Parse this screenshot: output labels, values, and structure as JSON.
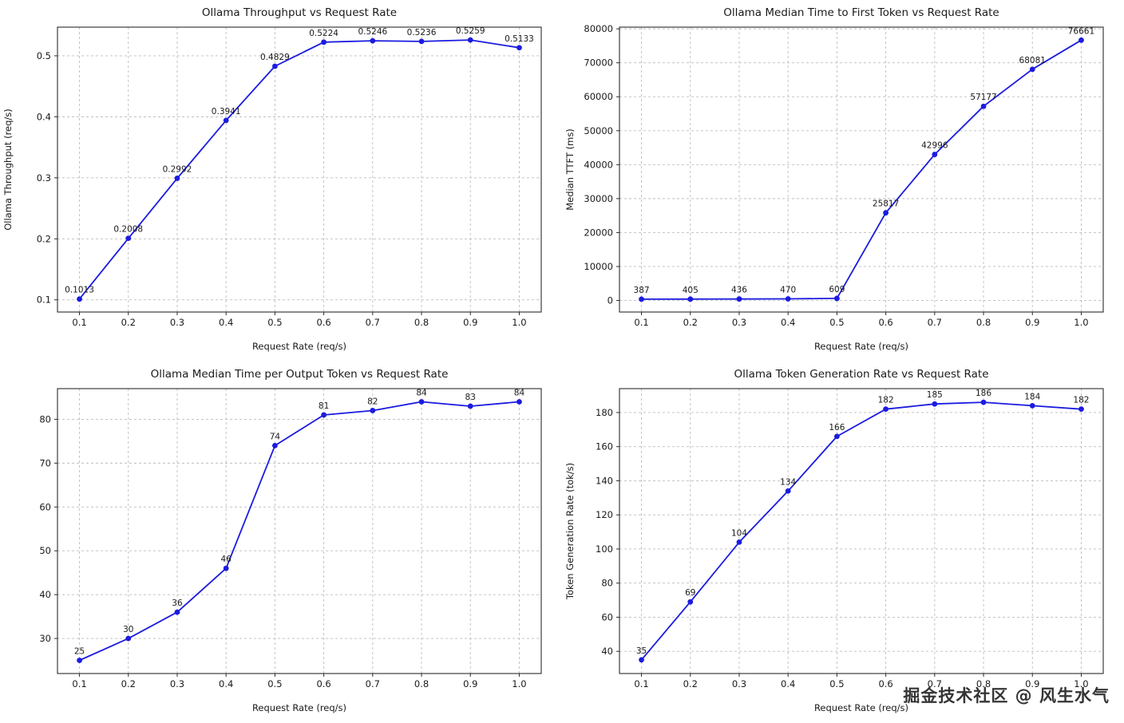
{
  "watermark": "掘金技术社区 @ 风生水气",
  "style": {
    "line_color": "#1b1be0",
    "marker_color": "#1b1be0",
    "grid_color": "#bdbdbd",
    "axis_color": "#2b2b2b",
    "text_color": "#1a1a1a",
    "background": "#ffffff"
  },
  "chart_data": [
    {
      "type": "line",
      "title": "Ollama Throughput vs Request Rate",
      "xlabel": "Request Rate (req/s)",
      "ylabel": "Ollama Throughput (req/s)",
      "x": [
        0.1,
        0.2,
        0.3,
        0.4,
        0.5,
        0.6,
        0.7,
        0.8,
        0.9,
        1.0
      ],
      "values": [
        0.1013,
        0.2008,
        0.2992,
        0.3941,
        0.4829,
        0.5224,
        0.5246,
        0.5236,
        0.5259,
        0.5133
      ],
      "point_labels": [
        "0.1013",
        "0.2008",
        "0.2992",
        "0.3941",
        "0.4829",
        "0.5224",
        "0.5246",
        "0.5236",
        "0.5259",
        "0.5133"
      ],
      "xticks": [
        0.1,
        0.2,
        0.3,
        0.4,
        0.5,
        0.6,
        0.7,
        0.8,
        0.9,
        1.0
      ],
      "xtick_labels": [
        "0.1",
        "0.2",
        "0.3",
        "0.4",
        "0.5",
        "0.6",
        "0.7",
        "0.8",
        "0.9",
        "1.0"
      ],
      "yticks": [
        0.1,
        0.2,
        0.3,
        0.4,
        0.5
      ],
      "ytick_labels": [
        "0.1",
        "0.2",
        "0.3",
        "0.4",
        "0.5"
      ],
      "xlim": [
        0.055,
        1.045
      ],
      "ylim": [
        0.08,
        0.547
      ],
      "grid": true,
      "legend": "none"
    },
    {
      "type": "line",
      "title": "Ollama Median Time to First Token vs Request Rate",
      "xlabel": "Request Rate (req/s)",
      "ylabel": "Median TTFT (ms)",
      "x": [
        0.1,
        0.2,
        0.3,
        0.4,
        0.5,
        0.6,
        0.7,
        0.8,
        0.9,
        1.0
      ],
      "values": [
        387,
        405,
        436,
        470,
        609,
        25817,
        42996,
        57177,
        68081,
        76661
      ],
      "point_labels": [
        "387",
        "405",
        "436",
        "470",
        "609",
        "25817",
        "42996",
        "57177",
        "68081",
        "76661"
      ],
      "xticks": [
        0.1,
        0.2,
        0.3,
        0.4,
        0.5,
        0.6,
        0.7,
        0.8,
        0.9,
        1.0
      ],
      "xtick_labels": [
        "0.1",
        "0.2",
        "0.3",
        "0.4",
        "0.5",
        "0.6",
        "0.7",
        "0.8",
        "0.9",
        "1.0"
      ],
      "yticks": [
        0,
        10000,
        20000,
        30000,
        40000,
        50000,
        60000,
        70000,
        80000
      ],
      "ytick_labels": [
        "0",
        "10000",
        "20000",
        "30000",
        "40000",
        "50000",
        "60000",
        "70000",
        "80000"
      ],
      "xlim": [
        0.055,
        1.045
      ],
      "ylim": [
        -3400,
        80500
      ],
      "grid": true,
      "legend": "none"
    },
    {
      "type": "line",
      "title": "Ollama Median Time per Output Token vs Request Rate",
      "xlabel": "Request Rate (req/s)",
      "ylabel": "",
      "x": [
        0.1,
        0.2,
        0.3,
        0.4,
        0.5,
        0.6,
        0.7,
        0.8,
        0.9,
        1.0
      ],
      "values": [
        25,
        30,
        36,
        46,
        74,
        81,
        82,
        84,
        83,
        84
      ],
      "point_labels": [
        "25",
        "30",
        "36",
        "46",
        "74",
        "81",
        "82",
        "84",
        "83",
        "84"
      ],
      "xticks": [
        0.1,
        0.2,
        0.3,
        0.4,
        0.5,
        0.6,
        0.7,
        0.8,
        0.9,
        1.0
      ],
      "xtick_labels": [
        "0.1",
        "0.2",
        "0.3",
        "0.4",
        "0.5",
        "0.6",
        "0.7",
        "0.8",
        "0.9",
        "1.0"
      ],
      "yticks": [
        30,
        40,
        50,
        60,
        70,
        80
      ],
      "ytick_labels": [
        "30",
        "40",
        "50",
        "60",
        "70",
        "80"
      ],
      "xlim": [
        0.055,
        1.045
      ],
      "ylim": [
        22,
        87
      ],
      "grid": true,
      "legend": "none"
    },
    {
      "type": "line",
      "title": "Ollama Token Generation Rate vs Request Rate",
      "xlabel": "Request Rate (req/s)",
      "ylabel": "Token Generation Rate (tok/s)",
      "x": [
        0.1,
        0.2,
        0.3,
        0.4,
        0.5,
        0.6,
        0.7,
        0.8,
        0.9,
        1.0
      ],
      "values": [
        35,
        69,
        104,
        134,
        166,
        182,
        185,
        186,
        184,
        182
      ],
      "point_labels": [
        "35",
        "69",
        "104",
        "134",
        "166",
        "182",
        "185",
        "186",
        "184",
        "182"
      ],
      "xticks": [
        0.1,
        0.2,
        0.3,
        0.4,
        0.5,
        0.6,
        0.7,
        0.8,
        0.9,
        1.0
      ],
      "xtick_labels": [
        "0.1",
        "0.2",
        "0.3",
        "0.4",
        "0.5",
        "0.6",
        "0.7",
        "0.8",
        "0.9",
        "1.0"
      ],
      "yticks": [
        40,
        60,
        80,
        100,
        120,
        140,
        160,
        180
      ],
      "ytick_labels": [
        "40",
        "60",
        "80",
        "100",
        "120",
        "140",
        "160",
        "180"
      ],
      "xlim": [
        0.055,
        1.045
      ],
      "ylim": [
        27,
        194
      ],
      "grid": true,
      "legend": "none"
    }
  ]
}
